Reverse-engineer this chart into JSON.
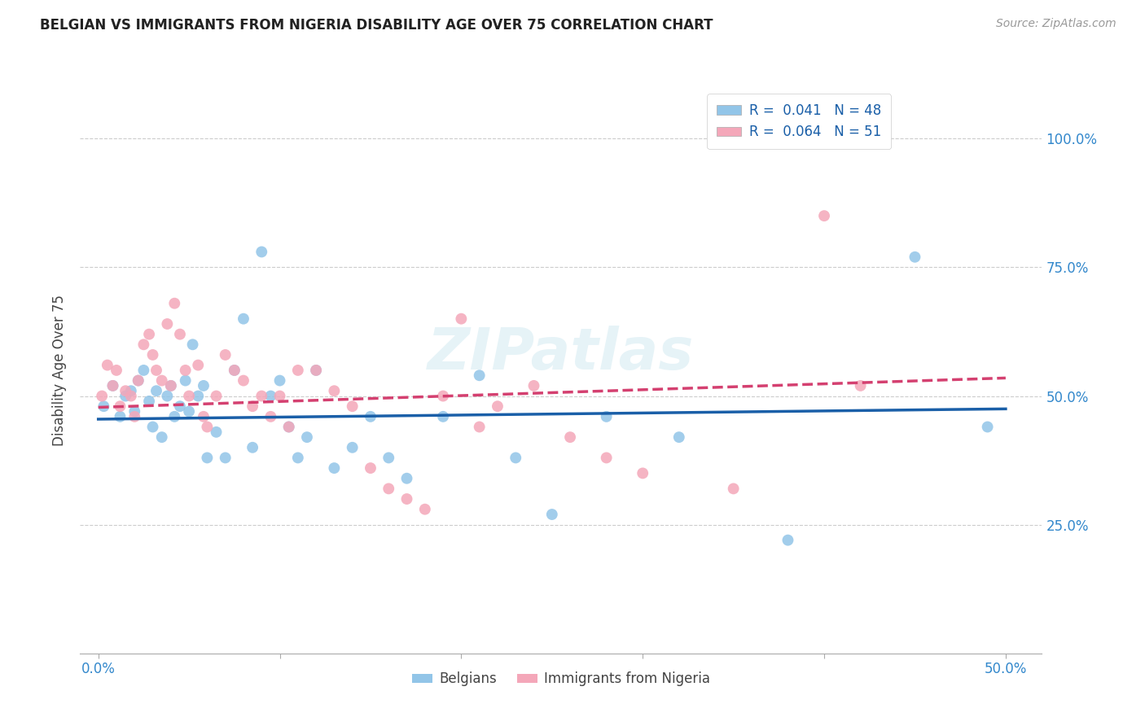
{
  "title": "BELGIAN VS IMMIGRANTS FROM NIGERIA DISABILITY AGE OVER 75 CORRELATION CHART",
  "source": "Source: ZipAtlas.com",
  "ylabel": "Disability Age Over 75",
  "yticks": [
    0.0,
    0.25,
    0.5,
    0.75,
    1.0
  ],
  "ytick_labels": [
    "",
    "25.0%",
    "50.0%",
    "75.0%",
    "100.0%"
  ],
  "xticks": [
    0.0,
    0.1,
    0.2,
    0.3,
    0.4,
    0.5
  ],
  "xtick_labels": [
    "0.0%",
    "",
    "",
    "",
    "",
    "50.0%"
  ],
  "xlim": [
    -0.01,
    0.52
  ],
  "ylim": [
    0.0,
    1.1
  ],
  "legend_text_1": "R =  0.041   N = 48",
  "legend_text_2": "R =  0.064   N = 51",
  "legend_label_blue": "Belgians",
  "legend_label_pink": "Immigrants from Nigeria",
  "watermark": "ZIPatlas",
  "blue_color": "#92c5e8",
  "pink_color": "#f4a7b9",
  "line_blue": "#1a5fa8",
  "line_pink": "#d44070",
  "blue_scatter_x": [
    0.003,
    0.008,
    0.012,
    0.015,
    0.018,
    0.02,
    0.022,
    0.025,
    0.028,
    0.03,
    0.032,
    0.035,
    0.038,
    0.04,
    0.042,
    0.045,
    0.048,
    0.05,
    0.052,
    0.055,
    0.058,
    0.06,
    0.065,
    0.07,
    0.075,
    0.08,
    0.085,
    0.09,
    0.095,
    0.1,
    0.105,
    0.11,
    0.115,
    0.12,
    0.13,
    0.14,
    0.15,
    0.16,
    0.17,
    0.19,
    0.21,
    0.23,
    0.25,
    0.28,
    0.32,
    0.38,
    0.45,
    0.49
  ],
  "blue_scatter_y": [
    0.48,
    0.52,
    0.46,
    0.5,
    0.51,
    0.47,
    0.53,
    0.55,
    0.49,
    0.44,
    0.51,
    0.42,
    0.5,
    0.52,
    0.46,
    0.48,
    0.53,
    0.47,
    0.6,
    0.5,
    0.52,
    0.38,
    0.43,
    0.38,
    0.55,
    0.65,
    0.4,
    0.78,
    0.5,
    0.53,
    0.44,
    0.38,
    0.42,
    0.55,
    0.36,
    0.4,
    0.46,
    0.38,
    0.34,
    0.46,
    0.54,
    0.38,
    0.27,
    0.46,
    0.42,
    0.22,
    0.77,
    0.44
  ],
  "pink_scatter_x": [
    0.002,
    0.005,
    0.008,
    0.01,
    0.012,
    0.015,
    0.018,
    0.02,
    0.022,
    0.025,
    0.028,
    0.03,
    0.032,
    0.035,
    0.038,
    0.04,
    0.042,
    0.045,
    0.048,
    0.05,
    0.055,
    0.058,
    0.06,
    0.065,
    0.07,
    0.075,
    0.08,
    0.085,
    0.09,
    0.095,
    0.1,
    0.105,
    0.11,
    0.12,
    0.13,
    0.14,
    0.15,
    0.16,
    0.17,
    0.18,
    0.19,
    0.2,
    0.21,
    0.22,
    0.24,
    0.26,
    0.28,
    0.3,
    0.35,
    0.4,
    0.42
  ],
  "pink_scatter_y": [
    0.5,
    0.56,
    0.52,
    0.55,
    0.48,
    0.51,
    0.5,
    0.46,
    0.53,
    0.6,
    0.62,
    0.58,
    0.55,
    0.53,
    0.64,
    0.52,
    0.68,
    0.62,
    0.55,
    0.5,
    0.56,
    0.46,
    0.44,
    0.5,
    0.58,
    0.55,
    0.53,
    0.48,
    0.5,
    0.46,
    0.5,
    0.44,
    0.55,
    0.55,
    0.51,
    0.48,
    0.36,
    0.32,
    0.3,
    0.28,
    0.5,
    0.65,
    0.44,
    0.48,
    0.52,
    0.42,
    0.38,
    0.35,
    0.32,
    0.85,
    0.52
  ],
  "blue_line_x0": 0.0,
  "blue_line_x1": 0.5,
  "blue_line_y0": 0.455,
  "blue_line_y1": 0.475,
  "pink_line_x0": 0.0,
  "pink_line_x1": 0.5,
  "pink_line_y0": 0.478,
  "pink_line_y1": 0.535
}
